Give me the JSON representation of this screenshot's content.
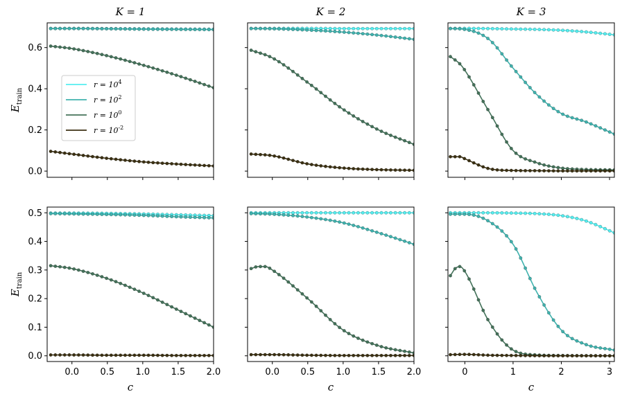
{
  "chart_data": {
    "type": "line",
    "layout": "2x3 grid",
    "legend": {
      "placement": "left-middle of top-left panel",
      "entries": [
        {
          "label": "r = 10^4",
          "color": "#55eef0"
        },
        {
          "label": "r = 10^2",
          "color": "#40b2ae"
        },
        {
          "label": "r = 10^0",
          "color": "#44725a"
        },
        {
          "label": "r = 10^-2",
          "color": "#3b3012"
        }
      ]
    },
    "column_titles": [
      "K = 1",
      "K = 2",
      "K = 3"
    ],
    "row_ylabels": [
      "E_train",
      "E_train"
    ],
    "xlabel": "c",
    "panels": [
      {
        "name": "top-K1",
        "K": 1,
        "row": 0,
        "xlim": [
          -0.35,
          2.0
        ],
        "ylim": [
          -0.03,
          0.72
        ],
        "xticks": [
          0.0,
          0.5,
          1.0,
          1.5,
          2.0
        ],
        "xticklabels": [
          "",
          "",
          "",
          "",
          ""
        ],
        "yticks": [
          0.0,
          0.2,
          0.4,
          0.6
        ],
        "yticklabels": [
          "0.0",
          "0.2",
          "0.4",
          "0.6"
        ],
        "series": [
          {
            "name": "r=10^4",
            "x": [
              -0.3,
              0.0,
              0.5,
              1.0,
              1.5,
              2.0
            ],
            "y": [
              0.693,
              0.693,
              0.692,
              0.691,
              0.69,
              0.689
            ]
          },
          {
            "name": "r=10^2",
            "x": [
              -0.3,
              0.0,
              0.5,
              1.0,
              1.5,
              2.0
            ],
            "y": [
              0.692,
              0.692,
              0.691,
              0.689,
              0.688,
              0.687
            ]
          },
          {
            "name": "r=10^0",
            "x": [
              -0.3,
              0.0,
              0.5,
              1.0,
              1.5,
              2.0
            ],
            "y": [
              0.607,
              0.595,
              0.56,
              0.515,
              0.463,
              0.405
            ]
          },
          {
            "name": "r=10^-2",
            "x": [
              -0.3,
              0.0,
              0.5,
              1.0,
              1.5,
              2.0
            ],
            "y": [
              0.096,
              0.083,
              0.062,
              0.045,
              0.034,
              0.025
            ]
          }
        ]
      },
      {
        "name": "top-K2",
        "K": 2,
        "row": 0,
        "xlim": [
          -0.35,
          2.0
        ],
        "ylim": [
          -0.03,
          0.72
        ],
        "xticks": [
          0.0,
          0.5,
          1.0,
          1.5,
          2.0
        ],
        "xticklabels": [
          "",
          "",
          "",
          "",
          ""
        ],
        "yticks": [
          0.0,
          0.2,
          0.4,
          0.6
        ],
        "yticklabels": [
          "",
          "",
          "",
          ""
        ],
        "series": [
          {
            "name": "r=10^4",
            "x": [
              -0.3,
              0.0,
              0.5,
              1.0,
              1.5,
              2.0
            ],
            "y": [
              0.693,
              0.693,
              0.693,
              0.692,
              0.692,
              0.692
            ]
          },
          {
            "name": "r=10^2",
            "x": [
              -0.3,
              0.0,
              0.5,
              1.0,
              1.5,
              2.0
            ],
            "y": [
              0.692,
              0.691,
              0.685,
              0.675,
              0.66,
              0.64
            ]
          },
          {
            "name": "r=10^0",
            "x": [
              -0.3,
              0.0,
              0.5,
              1.0,
              1.5,
              2.0
            ],
            "y": [
              0.587,
              0.55,
              0.43,
              0.3,
              0.2,
              0.13
            ]
          },
          {
            "name": "r=10^-2",
            "x": [
              -0.3,
              0.0,
              0.5,
              1.0,
              1.5,
              2.0
            ],
            "y": [
              0.083,
              0.075,
              0.035,
              0.015,
              0.007,
              0.004
            ]
          }
        ]
      },
      {
        "name": "top-K3",
        "K": 3,
        "row": 0,
        "xlim": [
          -0.35,
          3.1
        ],
        "ylim": [
          -0.03,
          0.72
        ],
        "xticks": [
          0,
          1,
          2,
          3
        ],
        "xticklabels": [
          "",
          "",
          "",
          ""
        ],
        "yticks": [
          0.0,
          0.2,
          0.4,
          0.6
        ],
        "yticklabels": [
          "",
          "",
          "",
          ""
        ],
        "series": [
          {
            "name": "r=10^4",
            "x": [
              -0.3,
              0.0,
              0.5,
              1.0,
              1.5,
              2.0,
              2.5,
              3.1
            ],
            "y": [
              0.693,
              0.693,
              0.692,
              0.69,
              0.688,
              0.684,
              0.676,
              0.662
            ]
          },
          {
            "name": "r=10^2",
            "x": [
              -0.3,
              0.0,
              0.5,
              1.0,
              1.5,
              2.0,
              2.5,
              3.1
            ],
            "y": [
              0.692,
              0.688,
              0.64,
              0.5,
              0.37,
              0.28,
              0.24,
              0.18
            ]
          },
          {
            "name": "r=10^0",
            "x": [
              -0.3,
              -0.1,
              0.0,
              0.5,
              1.0,
              1.5,
              2.0,
              2.5,
              3.1
            ],
            "y": [
              0.556,
              0.52,
              0.49,
              0.29,
              0.1,
              0.04,
              0.015,
              0.008,
              0.006
            ]
          },
          {
            "name": "r=10^-2",
            "x": [
              -0.3,
              -0.1,
              0.0,
              0.5,
              1.0,
              1.5,
              2.0,
              3.1
            ],
            "y": [
              0.07,
              0.07,
              0.06,
              0.012,
              0.003,
              0.002,
              0.001,
              0.001
            ]
          }
        ]
      },
      {
        "name": "bottom-K1",
        "K": 1,
        "row": 1,
        "xlim": [
          -0.35,
          2.0
        ],
        "ylim": [
          -0.02,
          0.52
        ],
        "xticks": [
          0.0,
          0.5,
          1.0,
          1.5,
          2.0
        ],
        "xticklabels": [
          "0.0",
          "0.5",
          "1.0",
          "1.5",
          "2.0"
        ],
        "yticks": [
          0.0,
          0.1,
          0.2,
          0.3,
          0.4,
          0.5
        ],
        "yticklabels": [
          "0.0",
          "0.1",
          "0.2",
          "0.3",
          "0.4",
          "0.5"
        ],
        "series": [
          {
            "name": "r=10^4",
            "x": [
              -0.3,
              0.0,
              0.5,
              1.0,
              1.5,
              2.0
            ],
            "y": [
              0.499,
              0.499,
              0.498,
              0.496,
              0.493,
              0.49
            ]
          },
          {
            "name": "r=10^2",
            "x": [
              -0.3,
              0.0,
              0.5,
              1.0,
              1.5,
              2.0
            ],
            "y": [
              0.497,
              0.496,
              0.494,
              0.491,
              0.486,
              0.482
            ]
          },
          {
            "name": "r=10^0",
            "x": [
              -0.3,
              0.0,
              0.5,
              1.0,
              1.5,
              2.0
            ],
            "y": [
              0.315,
              0.305,
              0.27,
              0.22,
              0.16,
              0.1
            ]
          },
          {
            "name": "r=10^-2",
            "x": [
              -0.3,
              0.0,
              0.5,
              1.0,
              1.5,
              2.0
            ],
            "y": [
              0.003,
              0.003,
              0.002,
              0.002,
              0.001,
              0.001
            ]
          }
        ]
      },
      {
        "name": "bottom-K2",
        "K": 2,
        "row": 1,
        "xlim": [
          -0.35,
          2.0
        ],
        "ylim": [
          -0.02,
          0.52
        ],
        "xticks": [
          0.0,
          0.5,
          1.0,
          1.5,
          2.0
        ],
        "xticklabels": [
          "0.0",
          "0.5",
          "1.0",
          "1.5",
          "2.0"
        ],
        "yticks": [
          0.0,
          0.1,
          0.2,
          0.3,
          0.4,
          0.5
        ],
        "yticklabels": [
          "",
          "",
          "",
          "",
          "",
          ""
        ],
        "series": [
          {
            "name": "r=10^4",
            "x": [
              -0.3,
              0.0,
              0.5,
              1.0,
              1.5,
              2.0
            ],
            "y": [
              0.5,
              0.5,
              0.5,
              0.5,
              0.5,
              0.5
            ]
          },
          {
            "name": "r=10^2",
            "x": [
              -0.3,
              0.0,
              0.5,
              1.0,
              1.5,
              2.0
            ],
            "y": [
              0.497,
              0.495,
              0.485,
              0.465,
              0.43,
              0.39
            ]
          },
          {
            "name": "r=10^0",
            "x": [
              -0.3,
              -0.2,
              -0.1,
              0.0,
              0.5,
              1.0,
              1.5,
              2.0
            ],
            "y": [
              0.305,
              0.312,
              0.312,
              0.3,
              0.2,
              0.09,
              0.035,
              0.01
            ]
          },
          {
            "name": "r=10^-2",
            "x": [
              -0.3,
              0.0,
              0.5,
              1.0,
              1.5,
              2.0
            ],
            "y": [
              0.004,
              0.004,
              0.002,
              0.001,
              0.001,
              0.001
            ]
          }
        ]
      },
      {
        "name": "bottom-K3",
        "K": 3,
        "row": 1,
        "xlim": [
          -0.35,
          3.1
        ],
        "ylim": [
          -0.02,
          0.52
        ],
        "xticks": [
          0,
          1,
          2,
          3
        ],
        "xticklabels": [
          "0",
          "1",
          "2",
          "3"
        ],
        "yticks": [
          0.0,
          0.1,
          0.2,
          0.3,
          0.4,
          0.5
        ],
        "yticklabels": [
          "",
          "",
          "",
          "",
          "",
          ""
        ],
        "series": [
          {
            "name": "r=10^4",
            "x": [
              -0.3,
              0.0,
              0.5,
              1.0,
              1.5,
              2.0,
              2.5,
              3.1
            ],
            "y": [
              0.5,
              0.5,
              0.5,
              0.499,
              0.497,
              0.49,
              0.472,
              0.43
            ]
          },
          {
            "name": "r=10^2",
            "x": [
              -0.3,
              0.0,
              0.5,
              1.0,
              1.5,
              2.0,
              2.5,
              3.1
            ],
            "y": [
              0.495,
              0.495,
              0.47,
              0.39,
              0.22,
              0.09,
              0.04,
              0.02
            ]
          },
          {
            "name": "r=10^0",
            "x": [
              -0.3,
              -0.2,
              -0.1,
              0.0,
              0.5,
              1.0,
              1.5,
              2.0,
              3.1
            ],
            "y": [
              0.28,
              0.305,
              0.312,
              0.295,
              0.12,
              0.02,
              0.003,
              0.001,
              0.0
            ]
          },
          {
            "name": "r=10^-2",
            "x": [
              -0.3,
              0.0,
              0.5,
              1.0,
              2.0,
              3.1
            ],
            "y": [
              0.004,
              0.005,
              0.002,
              0.001,
              0.0,
              0.0
            ]
          }
        ]
      }
    ]
  }
}
